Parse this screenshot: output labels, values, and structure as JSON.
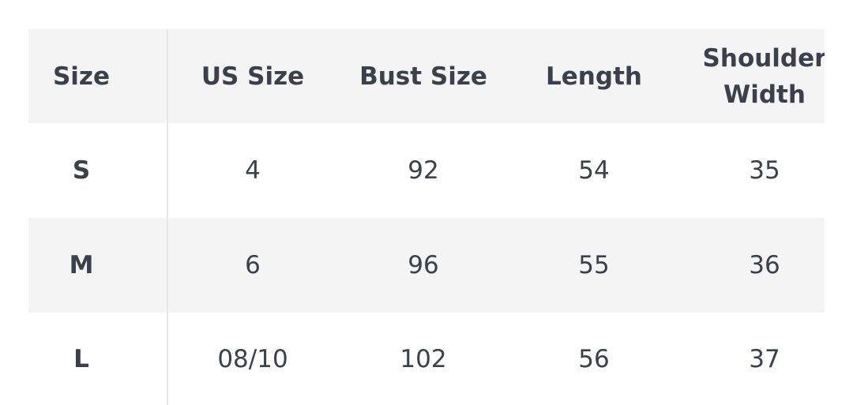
{
  "table": {
    "header": [
      "Size",
      "US Size",
      "Bust Size",
      "Length",
      "Shoulder Width"
    ],
    "rows": [
      [
        "S",
        "4",
        "92",
        "54",
        "35"
      ],
      [
        "M",
        "6",
        "96",
        "55",
        "36"
      ],
      [
        "L",
        "08/10",
        "102",
        "56",
        "37"
      ]
    ]
  }
}
